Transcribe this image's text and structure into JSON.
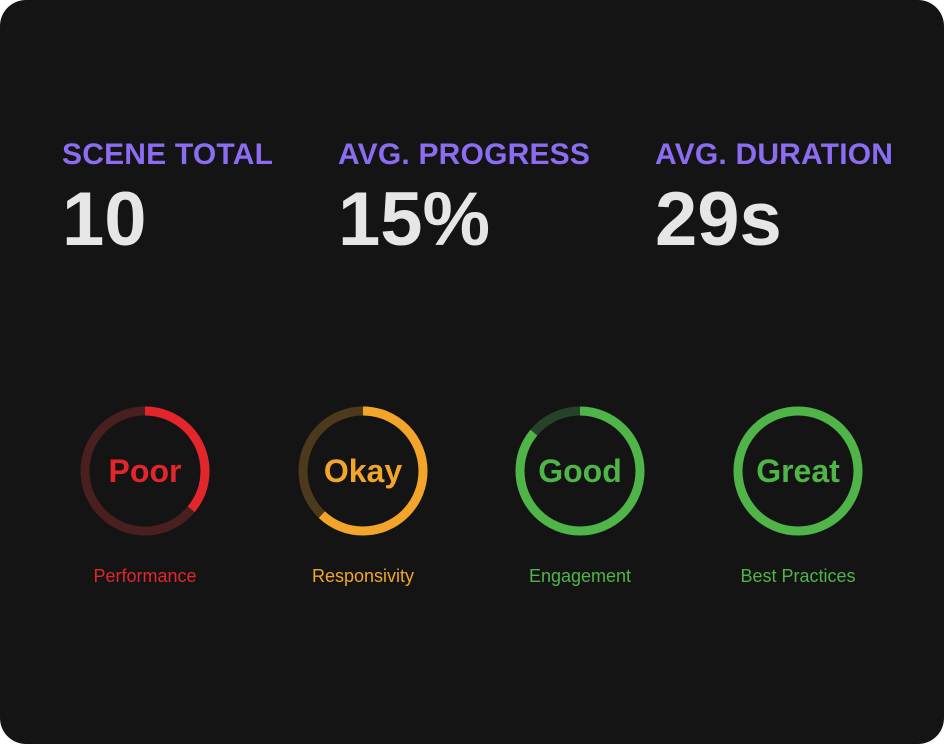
{
  "stats": [
    {
      "label": "SCENE TOTAL",
      "value": "10"
    },
    {
      "label": "AVG. PROGRESS",
      "value": "15%"
    },
    {
      "label": "AVG. DURATION",
      "value": "29s"
    }
  ],
  "gauges": [
    {
      "word": "Poor",
      "caption": "Performance",
      "color": "#e3262b",
      "track": "#4a1f1f",
      "level": 0.36
    },
    {
      "word": "Okay",
      "caption": "Responsivity",
      "color": "#f2a52a",
      "track": "#4d3a1c",
      "level": 0.62
    },
    {
      "word": "Good",
      "caption": "Engagement",
      "color": "#4fb548",
      "track": "#26432a",
      "level": 0.86
    },
    {
      "word": "Great",
      "caption": "Best Practices",
      "color": "#4fb548",
      "track": "#26432a",
      "level": 1.0
    }
  ]
}
